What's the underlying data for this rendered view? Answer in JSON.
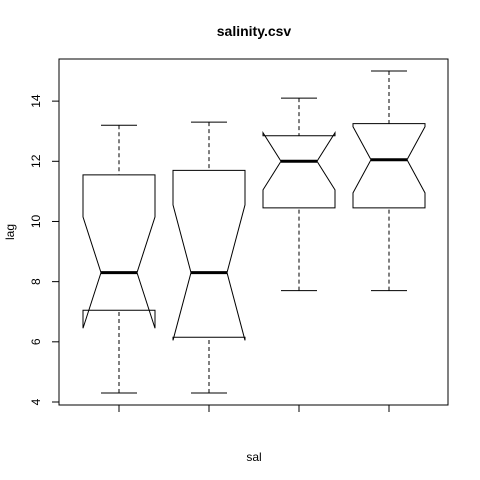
{
  "chart_data": {
    "type": "boxplot",
    "title": "salinity.csv",
    "xlabel": "sal",
    "ylabel": "lag",
    "ylim": [
      3.9,
      15.4
    ],
    "y_ticks": [
      4,
      6,
      8,
      10,
      12,
      14
    ],
    "notched": true,
    "categories": [
      "",
      "",
      "",
      ""
    ],
    "boxes": [
      {
        "lower_whisker": 4.3,
        "q1": 7.05,
        "median": 8.3,
        "q3": 11.55,
        "upper_whisker": 13.2,
        "notch_low": 6.45,
        "notch_high": 10.15
      },
      {
        "lower_whisker": 4.3,
        "q1": 6.15,
        "median": 8.3,
        "q3": 11.7,
        "upper_whisker": 13.3,
        "notch_low": 6.05,
        "notch_high": 10.55
      },
      {
        "lower_whisker": 7.7,
        "q1": 10.45,
        "median": 12.0,
        "q3": 12.85,
        "upper_whisker": 14.1,
        "notch_low": 11.05,
        "notch_high": 12.95
      },
      {
        "lower_whisker": 7.7,
        "q1": 10.45,
        "median": 12.05,
        "q3": 13.25,
        "upper_whisker": 15.0,
        "notch_low": 10.95,
        "notch_high": 13.15
      }
    ],
    "grid": false,
    "legend": "none"
  }
}
